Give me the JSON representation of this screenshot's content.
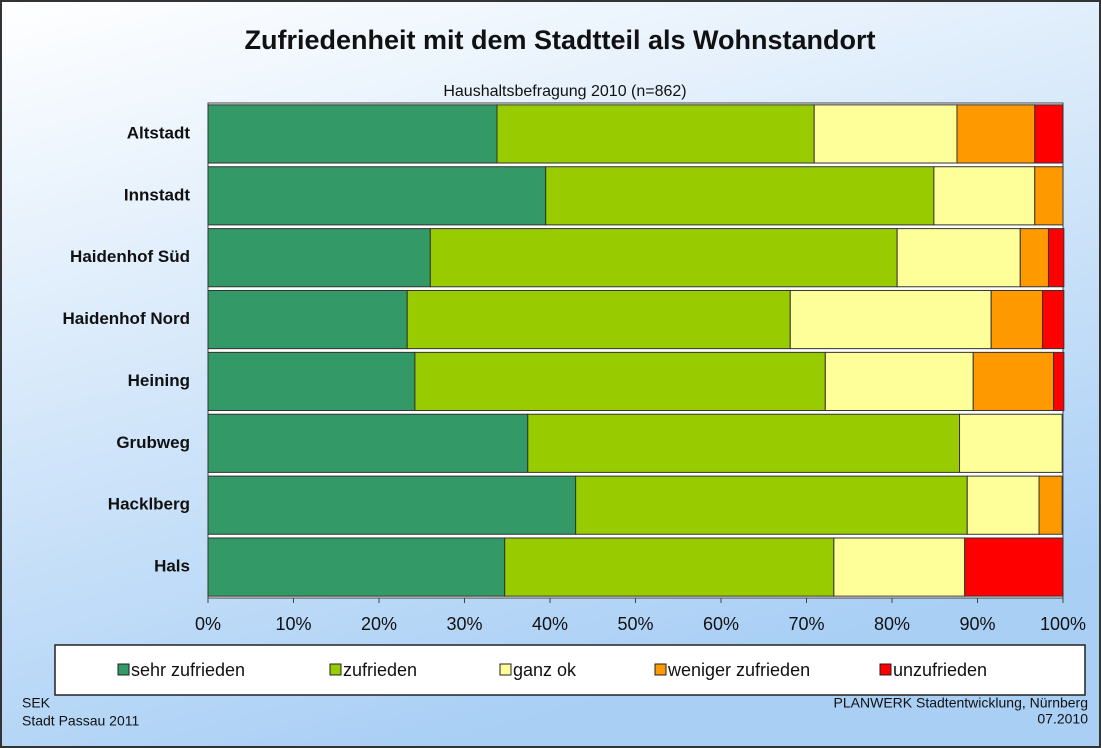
{
  "chart_data": {
    "type": "stacked_barh",
    "title": "Zufriedenheit mit dem Stadtteil als Wohnstandort",
    "subtitle": "Haushaltsbefragung 2010 (n=862)",
    "categories": [
      "Altstadt",
      "Innstadt",
      "Haidenhof Süd",
      "Haidenhof Nord",
      "Heining",
      "Grubweg",
      "Hacklberg",
      "Hals"
    ],
    "series": [
      {
        "name": "sehr zufrieden",
        "color": "#339966",
        "values": [
          33.8,
          39.5,
          26.0,
          23.3,
          24.2,
          37.4,
          43.0,
          34.7
        ]
      },
      {
        "name": "zufrieden",
        "color": "#99cc00",
        "values": [
          37.1,
          45.4,
          54.6,
          44.8,
          48.0,
          50.5,
          45.8,
          38.5
        ]
      },
      {
        "name": "ganz ok",
        "color": "#ffff99",
        "values": [
          16.7,
          11.8,
          14.4,
          23.5,
          17.3,
          12.0,
          8.4,
          15.3
        ]
      },
      {
        "name": "weniger zufrieden",
        "color": "#ff9900",
        "values": [
          9.1,
          3.3,
          3.3,
          6.0,
          9.4,
          0,
          2.7,
          0
        ]
      },
      {
        "name": "unzufrieden",
        "color": "#ff0000",
        "values": [
          3.3,
          0,
          1.8,
          2.5,
          1.2,
          0,
          0,
          11.5
        ]
      }
    ],
    "xlim": [
      0,
      100
    ],
    "xticks": [
      {
        "value": 0,
        "label": "0%"
      },
      {
        "value": 10,
        "label": "10%"
      },
      {
        "value": 20,
        "label": "20%"
      },
      {
        "value": 30,
        "label": "30%"
      },
      {
        "value": 40,
        "label": "40%"
      },
      {
        "value": 50,
        "label": "50%"
      },
      {
        "value": 60,
        "label": "60%"
      },
      {
        "value": 70,
        "label": "70%"
      },
      {
        "value": 80,
        "label": "80%"
      },
      {
        "value": 90,
        "label": "90%"
      },
      {
        "value": 100,
        "label": "100%"
      }
    ],
    "legend": "bottom",
    "source_left": [
      "SEK",
      "Stadt Passau 2011"
    ],
    "source_right": [
      "PLANWERK Stadtentwicklung, Nürnberg",
      "07.2010"
    ]
  }
}
